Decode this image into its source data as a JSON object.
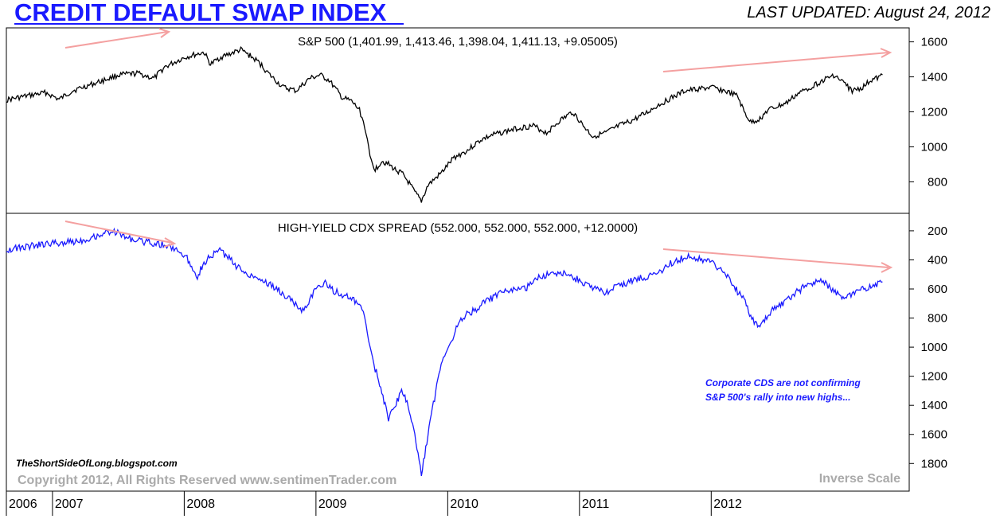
{
  "header": {
    "title": "CREDIT DEFAULT SWAP INDEX",
    "last_updated": "LAST UPDATED:  August 24, 2012"
  },
  "colors": {
    "title": "#1a1aff",
    "sp500_line": "#000000",
    "cdx_line": "#1a1aff",
    "arrows": "#f4a0a0",
    "watermark": "#aaaaaa"
  },
  "footer": {
    "blog": "TheShortSideOfLong.blogspot.com",
    "copyright": "Copyright 2012, All Rights Reserved  www.sentimenTrader.com",
    "inverse_scale": "Inverse Scale"
  },
  "annotation": {
    "line1": "Corporate CDS are not confirming",
    "line2": "S&P 500's rally into new highs..."
  },
  "chart_data": [
    {
      "type": "line",
      "title": "S&P 500 (1,401.99, 1,413.46, 1,398.04, 1,411.13, +9.05005)",
      "xlabel": "",
      "ylabel": "",
      "xlim": [
        2006.0,
        2012.72
      ],
      "ylim": [
        620,
        1680
      ],
      "y_ticks": [
        800,
        1000,
        1200,
        1400,
        1600
      ],
      "series": [
        {
          "name": "S&P 500",
          "x": [
            2006.0,
            2006.15,
            2006.3,
            2006.4,
            2006.5,
            2006.7,
            2006.85,
            2007.0,
            2007.12,
            2007.2,
            2007.35,
            2007.5,
            2007.55,
            2007.62,
            2007.78,
            2007.85,
            2007.92,
            2008.0,
            2008.1,
            2008.2,
            2008.3,
            2008.38,
            2008.45,
            2008.55,
            2008.62,
            2008.68,
            2008.72,
            2008.76,
            2008.8,
            2008.85,
            2008.9,
            2008.95,
            2009.0,
            2009.05,
            2009.1,
            2009.15,
            2009.2,
            2009.3,
            2009.4,
            2009.5,
            2009.6,
            2009.7,
            2009.8,
            2009.9,
            2010.0,
            2010.1,
            2010.2,
            2010.3,
            2010.38,
            2010.45,
            2010.55,
            2010.65,
            2010.75,
            2010.85,
            2010.95,
            2011.05,
            2011.15,
            2011.25,
            2011.35,
            2011.45,
            2011.55,
            2011.6,
            2011.65,
            2011.72,
            2011.78,
            2011.85,
            2011.92,
            2012.0,
            2012.1,
            2012.2,
            2012.28,
            2012.35,
            2012.42,
            2012.5,
            2012.56,
            2012.62,
            2012.65
          ],
          "y": [
            1268,
            1290,
            1310,
            1270,
            1320,
            1370,
            1410,
            1420,
            1390,
            1455,
            1510,
            1540,
            1470,
            1510,
            1555,
            1520,
            1480,
            1410,
            1340,
            1320,
            1390,
            1410,
            1380,
            1280,
            1260,
            1210,
            1120,
            940,
            870,
            920,
            900,
            870,
            850,
            800,
            740,
            690,
            780,
            850,
            940,
            980,
            1040,
            1070,
            1090,
            1110,
            1120,
            1080,
            1150,
            1200,
            1120,
            1060,
            1080,
            1120,
            1150,
            1190,
            1240,
            1280,
            1320,
            1330,
            1340,
            1320,
            1290,
            1200,
            1140,
            1160,
            1210,
            1230,
            1250,
            1300,
            1340,
            1380,
            1410,
            1370,
            1320,
            1340,
            1380,
            1395,
            1411
          ]
        }
      ]
    },
    {
      "type": "line",
      "title": "HIGH-YIELD CDX SPREAD (552.000, 552.000, 552.000, +12.0000)",
      "xlabel": "",
      "ylabel": "",
      "inverse_scale": true,
      "xlim": [
        2006.0,
        2012.72
      ],
      "ylim": [
        1990,
        80
      ],
      "y_ticks": [
        200,
        400,
        600,
        800,
        1000,
        1200,
        1400,
        1600,
        1800
      ],
      "x_ticks": [
        "2006",
        "2007",
        "2008",
        "2009",
        "2010",
        "2011",
        "2012"
      ],
      "x_tick_values": [
        2006.0,
        2006.35,
        2007.35,
        2008.35,
        2009.35,
        2010.35,
        2011.35
      ],
      "series": [
        {
          "name": "High-Yield CDX Spread",
          "x": [
            2006.0,
            2006.15,
            2006.3,
            2006.45,
            2006.6,
            2006.7,
            2006.8,
            2006.9,
            2007.0,
            2007.1,
            2007.2,
            2007.3,
            2007.38,
            2007.45,
            2007.5,
            2007.55,
            2007.62,
            2007.7,
            2007.78,
            2007.85,
            2007.95,
            2008.05,
            2008.15,
            2008.25,
            2008.35,
            2008.42,
            2008.5,
            2008.55,
            2008.62,
            2008.68,
            2008.72,
            2008.76,
            2008.8,
            2008.85,
            2008.9,
            2008.95,
            2009.0,
            2009.05,
            2009.1,
            2009.15,
            2009.2,
            2009.25,
            2009.3,
            2009.38,
            2009.45,
            2009.55,
            2009.65,
            2009.75,
            2009.85,
            2009.95,
            2010.05,
            2010.15,
            2010.25,
            2010.35,
            2010.45,
            2010.55,
            2010.65,
            2010.75,
            2010.85,
            2010.95,
            2011.05,
            2011.15,
            2011.25,
            2011.35,
            2011.45,
            2011.5,
            2011.55,
            2011.6,
            2011.65,
            2011.72,
            2011.78,
            2011.85,
            2011.92,
            2012.0,
            2012.1,
            2012.2,
            2012.3,
            2012.35,
            2012.42,
            2012.5,
            2012.58,
            2012.65
          ],
          "y": [
            330,
            310,
            290,
            280,
            260,
            230,
            200,
            240,
            270,
            280,
            300,
            330,
            400,
            510,
            420,
            380,
            330,
            400,
            470,
            500,
            540,
            600,
            670,
            750,
            600,
            560,
            620,
            640,
            670,
            710,
            800,
            1000,
            1150,
            1300,
            1500,
            1400,
            1300,
            1400,
            1600,
            1880,
            1600,
            1350,
            1100,
            950,
            800,
            750,
            680,
            630,
            610,
            590,
            520,
            480,
            500,
            540,
            600,
            620,
            580,
            540,
            520,
            490,
            420,
            380,
            390,
            420,
            480,
            540,
            620,
            680,
            800,
            860,
            780,
            720,
            680,
            620,
            560,
            550,
            620,
            670,
            640,
            600,
            570,
            552
          ]
        }
      ]
    }
  ]
}
